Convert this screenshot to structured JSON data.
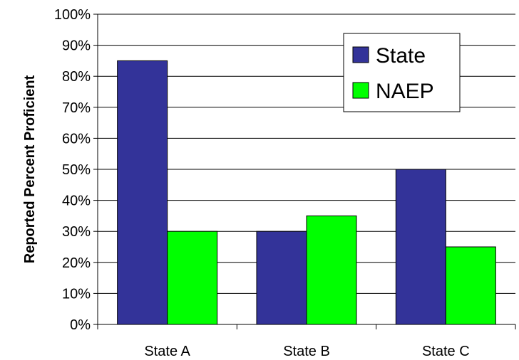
{
  "chart_data": {
    "type": "bar",
    "categories": [
      "State A",
      "State B",
      "State C"
    ],
    "series": [
      {
        "name": "State",
        "values": [
          85,
          30,
          50
        ],
        "color": "#333399"
      },
      {
        "name": "NAEP",
        "values": [
          30,
          35,
          25
        ],
        "color": "#00ff00"
      }
    ],
    "title": "",
    "xlabel": "",
    "ylabel": "Reported Percent Proficient",
    "ylim": [
      0,
      100
    ],
    "yticks": [
      "0%",
      "10%",
      "20%",
      "30%",
      "40%",
      "50%",
      "60%",
      "70%",
      "80%",
      "90%",
      "100%"
    ],
    "grid": true,
    "legend": "top-right"
  }
}
